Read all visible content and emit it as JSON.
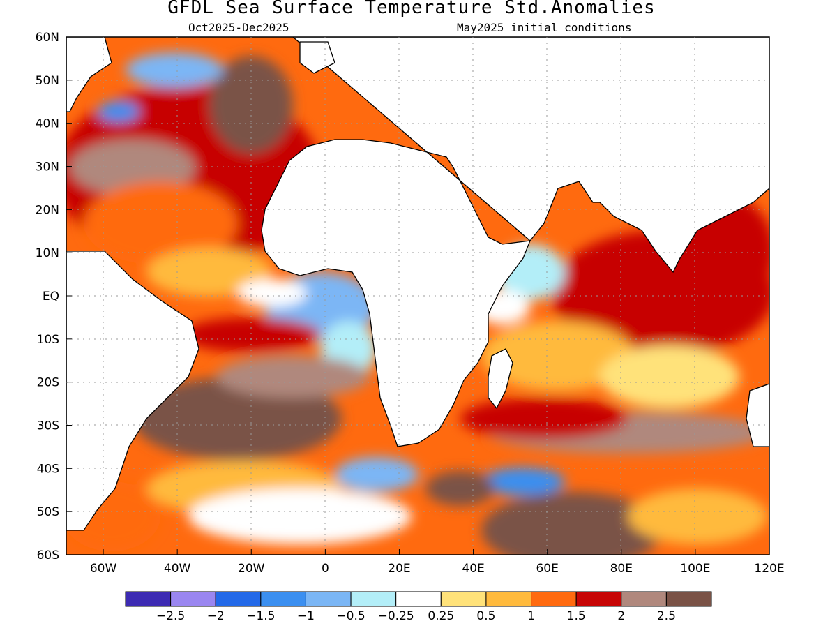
{
  "header": {
    "title": "GFDL Sea Surface Temperature Std.Anomalies",
    "period": "Oct2025-Dec2025",
    "init": "May2025 initial conditions"
  },
  "map": {
    "lon_range": [
      -70,
      120
    ],
    "lat_range": [
      -60,
      60
    ],
    "lat_ticks": [
      "60N",
      "50N",
      "40N",
      "30N",
      "20N",
      "10N",
      "EQ",
      "10S",
      "20S",
      "30S",
      "40S",
      "50S",
      "60S"
    ],
    "lon_ticks": [
      "60W",
      "40W",
      "20W",
      "0",
      "20E",
      "40E",
      "60E",
      "80E",
      "100E",
      "120E"
    ]
  },
  "colorbar": {
    "colors": [
      "#3d2bb3",
      "#9a86f0",
      "#2369e8",
      "#3b8ff0",
      "#7bb6f5",
      "#b3eef8",
      "#ffffff",
      "#ffe27a",
      "#ffba3d",
      "#ff6a0f",
      "#c70505",
      "#b0887d",
      "#7a5246"
    ],
    "labels": [
      "-2.5",
      "-2",
      "-1.5",
      "-1",
      "-0.5",
      "-0.25",
      "0.25",
      "0.5",
      "1",
      "1.5",
      "2",
      "2.5"
    ]
  }
}
